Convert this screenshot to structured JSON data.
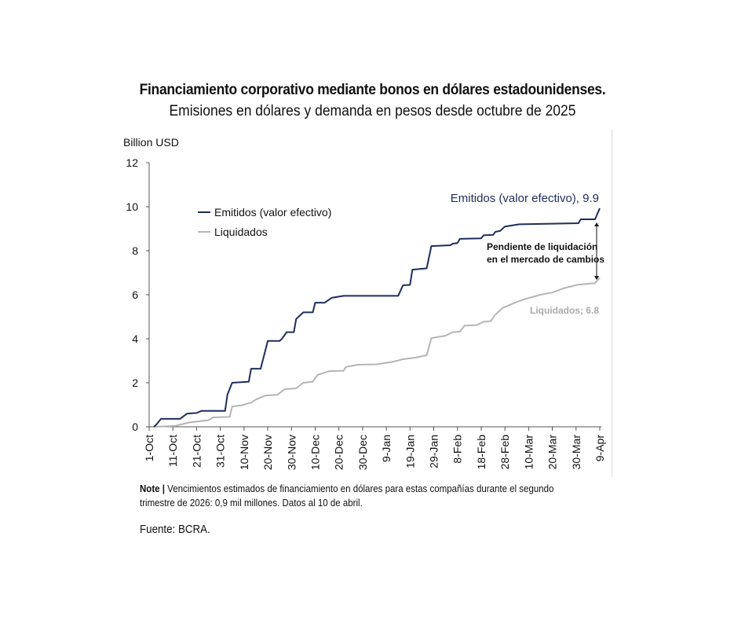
{
  "title": "Financiamiento corporativo mediante bonos en dólares estadounidenses.",
  "subtitle": "Emisiones en dólares y demanda en pesos desde octubre de 2025",
  "note_label": "Note",
  "note_text": "Vencimientos estimados de financiamiento en dólares para estas compañías durante el segundo trimestre de 2026: 0,9 mil millones. Datos al 10 de abril.",
  "source": "Fuente: BCRA.",
  "chart_data": {
    "type": "line",
    "ylabel": "Billion USD",
    "ylim": [
      0,
      12
    ],
    "yticks": [
      0,
      2,
      4,
      6,
      8,
      10,
      12
    ],
    "xlim": [
      "2025-10-01",
      "2026-04-09"
    ],
    "xticks": [
      {
        "date": "2025-10-01",
        "label": "1-Oct"
      },
      {
        "date": "2025-10-11",
        "label": "11-Oct"
      },
      {
        "date": "2025-10-21",
        "label": "21-Oct"
      },
      {
        "date": "2025-10-31",
        "label": "31-Oct"
      },
      {
        "date": "2025-11-10",
        "label": "10-Nov"
      },
      {
        "date": "2025-11-20",
        "label": "20-Nov"
      },
      {
        "date": "2025-11-30",
        "label": "30-Nov"
      },
      {
        "date": "2025-12-10",
        "label": "10-Dec"
      },
      {
        "date": "2025-12-20",
        "label": "20-Dec"
      },
      {
        "date": "2025-12-30",
        "label": "30-Dec"
      },
      {
        "date": "2026-01-09",
        "label": "9-Jan"
      },
      {
        "date": "2026-01-19",
        "label": "19-Jan"
      },
      {
        "date": "2026-01-29",
        "label": "29-Jan"
      },
      {
        "date": "2026-02-08",
        "label": "8-Feb"
      },
      {
        "date": "2026-02-18",
        "label": "18-Feb"
      },
      {
        "date": "2026-02-28",
        "label": "28-Feb"
      },
      {
        "date": "2026-03-10",
        "label": "10-Mar"
      },
      {
        "date": "2026-03-20",
        "label": "20-Mar"
      },
      {
        "date": "2026-03-30",
        "label": "30-Mar"
      },
      {
        "date": "2026-04-09",
        "label": "9-Apr"
      }
    ],
    "legend_position": "top-left",
    "grid": false,
    "series": [
      {
        "name": "Emitidos (valor efectivo)",
        "color": "#1f2d5c",
        "end_label": "Emitidos (valor efectivo), 9.9",
        "points": [
          [
            "2025-10-03",
            0
          ],
          [
            "2025-10-04",
            0.1
          ],
          [
            "2025-10-06",
            0.36
          ],
          [
            "2025-10-14",
            0.36
          ],
          [
            "2025-10-17",
            0.6
          ],
          [
            "2025-10-21",
            0.63
          ],
          [
            "2025-10-23",
            0.72
          ],
          [
            "2025-11-02",
            0.72
          ],
          [
            "2025-11-03",
            1.46
          ],
          [
            "2025-11-05",
            2.0
          ],
          [
            "2025-11-12",
            2.05
          ],
          [
            "2025-11-13",
            2.64
          ],
          [
            "2025-11-17",
            2.64
          ],
          [
            "2025-11-20",
            3.9
          ],
          [
            "2025-11-25",
            3.9
          ],
          [
            "2025-11-26",
            4.0
          ],
          [
            "2025-11-28",
            4.3
          ],
          [
            "2025-12-01",
            4.3
          ],
          [
            "2025-12-02",
            4.9
          ],
          [
            "2025-12-05",
            5.2
          ],
          [
            "2025-12-09",
            5.2
          ],
          [
            "2025-12-10",
            5.64
          ],
          [
            "2025-12-14",
            5.64
          ],
          [
            "2025-12-17",
            5.86
          ],
          [
            "2025-12-22",
            5.95
          ],
          [
            "2026-01-14",
            5.95
          ],
          [
            "2026-01-16",
            6.43
          ],
          [
            "2026-01-19",
            6.45
          ],
          [
            "2026-01-20",
            7.14
          ],
          [
            "2026-01-26",
            7.2
          ],
          [
            "2026-01-28",
            8.21
          ],
          [
            "2026-02-05",
            8.25
          ],
          [
            "2026-02-06",
            8.32
          ],
          [
            "2026-02-08",
            8.35
          ],
          [
            "2026-02-09",
            8.54
          ],
          [
            "2026-02-18",
            8.56
          ],
          [
            "2026-02-19",
            8.7
          ],
          [
            "2026-02-23",
            8.72
          ],
          [
            "2026-02-24",
            8.86
          ],
          [
            "2026-02-26",
            8.9
          ],
          [
            "2026-02-28",
            9.1
          ],
          [
            "2026-03-06",
            9.2
          ],
          [
            "2026-03-31",
            9.25
          ],
          [
            "2026-04-01",
            9.43
          ],
          [
            "2026-04-07",
            9.43
          ],
          [
            "2026-04-09",
            9.93
          ]
        ]
      },
      {
        "name": "Liquidados",
        "color": "#b5b5b5",
        "end_label": "Liquidados; 6.8",
        "points": [
          [
            "2025-10-03",
            0
          ],
          [
            "2025-10-12",
            0.04
          ],
          [
            "2025-10-18",
            0.2
          ],
          [
            "2025-10-26",
            0.3
          ],
          [
            "2025-10-28",
            0.43
          ],
          [
            "2025-11-04",
            0.45
          ],
          [
            "2025-11-05",
            0.92
          ],
          [
            "2025-11-09",
            0.98
          ],
          [
            "2025-11-13",
            1.1
          ],
          [
            "2025-11-15",
            1.24
          ],
          [
            "2025-11-19",
            1.42
          ],
          [
            "2025-11-24",
            1.45
          ],
          [
            "2025-11-27",
            1.7
          ],
          [
            "2025-12-02",
            1.75
          ],
          [
            "2025-12-05",
            2.0
          ],
          [
            "2025-12-09",
            2.05
          ],
          [
            "2025-12-11",
            2.36
          ],
          [
            "2025-12-16",
            2.53
          ],
          [
            "2025-12-22",
            2.55
          ],
          [
            "2025-12-23",
            2.72
          ],
          [
            "2025-12-28",
            2.82
          ],
          [
            "2026-01-05",
            2.84
          ],
          [
            "2026-01-12",
            2.96
          ],
          [
            "2026-01-16",
            3.07
          ],
          [
            "2026-01-21",
            3.14
          ],
          [
            "2026-01-26",
            3.25
          ],
          [
            "2026-01-28",
            4.03
          ],
          [
            "2026-02-03",
            4.14
          ],
          [
            "2026-02-06",
            4.3
          ],
          [
            "2026-02-09",
            4.32
          ],
          [
            "2026-02-11",
            4.6
          ],
          [
            "2026-02-16",
            4.62
          ],
          [
            "2026-02-19",
            4.77
          ],
          [
            "2026-02-22",
            4.8
          ],
          [
            "2026-02-24",
            5.1
          ],
          [
            "2026-02-27",
            5.4
          ],
          [
            "2026-03-05",
            5.67
          ],
          [
            "2026-03-09",
            5.82
          ],
          [
            "2026-03-15",
            6.0
          ],
          [
            "2026-03-20",
            6.1
          ],
          [
            "2026-03-25",
            6.3
          ],
          [
            "2026-03-31",
            6.46
          ],
          [
            "2026-04-07",
            6.53
          ],
          [
            "2026-04-09",
            6.78
          ]
        ]
      }
    ],
    "annotation": "Pendiente de liquidación\nen el mercado de cambios"
  }
}
